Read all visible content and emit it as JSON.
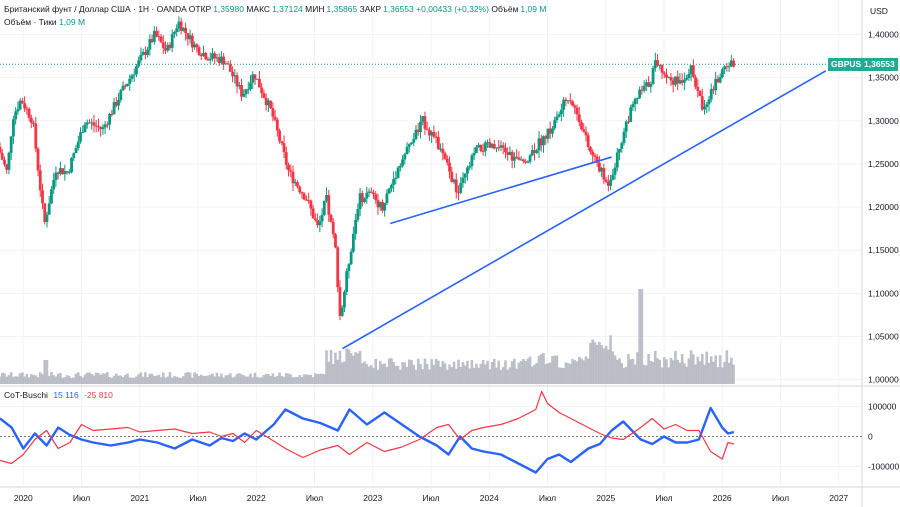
{
  "header": {
    "instrument": "Британский фунт / Доллар США · 1Н · OANDA",
    "open_label": "ОТКР",
    "open": "1,35980",
    "high_label": "МАКС",
    "high": "1,37124",
    "low_label": "МИН",
    "low": "1,35865",
    "close_label": "ЗАКР",
    "close": "1,36553",
    "change": "+0,00433 (+0,32%)",
    "volume_label": "Объём",
    "volume": "1,09 M",
    "volume_row_label": "Объём · Тики",
    "volume_row_value": "1,09 M"
  },
  "currency": "USD",
  "price_tag": {
    "symbol": "GBPUSD",
    "price": "1,36553"
  },
  "cot": {
    "label": "CoT-Buschi",
    "v1": "15 116",
    "v2": "-25 810"
  },
  "colors": {
    "up": "#089981",
    "down": "#f23645",
    "trend": "#2962ff",
    "grid": "#f0f3fa",
    "volume": "#b2b5be",
    "cot_blue": "#2962ff",
    "cot_red": "#f23645"
  },
  "chart_data": [
    {
      "type": "candlestick",
      "title": "",
      "x_ticks": [
        "2020",
        "Июл",
        "2021",
        "Июл",
        "2022",
        "Июл",
        "2023",
        "Июл",
        "2024",
        "Июл",
        "2025",
        "Июл",
        "2026",
        "Июл",
        "2027"
      ],
      "x_tick_values": [
        2020.0,
        2020.5,
        2021.0,
        2021.5,
        2022.0,
        2022.5,
        2023.0,
        2023.5,
        2024.0,
        2024.5,
        2025.0,
        2025.5,
        2026.0,
        2026.5,
        2027.0
      ],
      "xlim": [
        2019.8,
        2027.2
      ],
      "y_ticks": [
        "1,40000",
        "1,35000",
        "1,30000",
        "1,25000",
        "1,20000",
        "1,15000",
        "1,10000",
        "1,05000",
        "1,00000"
      ],
      "y_tick_values": [
        1.4,
        1.35,
        1.3,
        1.25,
        1.2,
        1.15,
        1.1,
        1.05,
        1.0
      ],
      "ylim": [
        0.995,
        1.44
      ],
      "price_path": [
        [
          2019.8,
          1.27
        ],
        [
          2019.88,
          1.24
        ],
        [
          2019.93,
          1.305
        ],
        [
          2020.0,
          1.325
        ],
        [
          2020.1,
          1.3
        ],
        [
          2020.2,
          1.18
        ],
        [
          2020.3,
          1.245
        ],
        [
          2020.4,
          1.24
        ],
        [
          2020.55,
          1.3
        ],
        [
          2020.7,
          1.29
        ],
        [
          2020.85,
          1.33
        ],
        [
          2021.0,
          1.365
        ],
        [
          2021.15,
          1.4
        ],
        [
          2021.25,
          1.38
        ],
        [
          2021.35,
          1.415
        ],
        [
          2021.5,
          1.385
        ],
        [
          2021.6,
          1.375
        ],
        [
          2021.75,
          1.37
        ],
        [
          2021.9,
          1.33
        ],
        [
          2022.0,
          1.355
        ],
        [
          2022.15,
          1.31
        ],
        [
          2022.3,
          1.24
        ],
        [
          2022.45,
          1.21
        ],
        [
          2022.55,
          1.175
        ],
        [
          2022.62,
          1.21
        ],
        [
          2022.7,
          1.15
        ],
        [
          2022.74,
          1.07
        ],
        [
          2022.8,
          1.125
        ],
        [
          2022.9,
          1.21
        ],
        [
          2023.0,
          1.215
        ],
        [
          2023.1,
          1.2
        ],
        [
          2023.25,
          1.25
        ],
        [
          2023.45,
          1.3
        ],
        [
          2023.55,
          1.28
        ],
        [
          2023.65,
          1.25
        ],
        [
          2023.75,
          1.215
        ],
        [
          2023.9,
          1.265
        ],
        [
          2024.0,
          1.27
        ],
        [
          2024.15,
          1.265
        ],
        [
          2024.3,
          1.25
        ],
        [
          2024.45,
          1.275
        ],
        [
          2024.55,
          1.29
        ],
        [
          2024.7,
          1.33
        ],
        [
          2024.8,
          1.3
        ],
        [
          2024.88,
          1.265
        ],
        [
          2024.95,
          1.25
        ],
        [
          2025.03,
          1.225
        ],
        [
          2025.1,
          1.25
        ],
        [
          2025.2,
          1.3
        ],
        [
          2025.3,
          1.33
        ],
        [
          2025.4,
          1.345
        ],
        [
          2025.45,
          1.37
        ],
        [
          2025.55,
          1.35
        ],
        [
          2025.65,
          1.345
        ],
        [
          2025.75,
          1.36
        ],
        [
          2025.85,
          1.315
        ],
        [
          2025.95,
          1.34
        ],
        [
          2026.05,
          1.365
        ],
        [
          2026.1,
          1.366
        ]
      ],
      "trendlines": [
        {
          "from": [
            2023.15,
            1.181
          ],
          "to": [
            2025.05,
            1.258
          ]
        },
        {
          "from": [
            2022.74,
            1.036
          ],
          "to": [
            2026.89,
            1.358
          ]
        }
      ],
      "last_price": 1.36553
    },
    {
      "type": "line",
      "title": "CoT-Buschi",
      "y_ticks": [
        "100000",
        "0",
        "-100000"
      ],
      "y_tick_values": [
        100000,
        0,
        -100000
      ],
      "ylim": [
        -165000,
        165000
      ],
      "series": [
        {
          "name": "",
          "color": "#2962ff",
          "points": [
            [
              2019.8,
              60000
            ],
            [
              2019.9,
              30000
            ],
            [
              2020.0,
              -40000
            ],
            [
              2020.1,
              10000
            ],
            [
              2020.2,
              -30000
            ],
            [
              2020.3,
              30000
            ],
            [
              2020.4,
              5000
            ],
            [
              2020.5,
              -10000
            ],
            [
              2020.6,
              -20000
            ],
            [
              2020.75,
              -30000
            ],
            [
              2020.9,
              -20000
            ],
            [
              2021.0,
              -10000
            ],
            [
              2021.15,
              -20000
            ],
            [
              2021.3,
              -40000
            ],
            [
              2021.45,
              -10000
            ],
            [
              2021.6,
              -30000
            ],
            [
              2021.7,
              -5000
            ],
            [
              2021.8,
              -15000
            ],
            [
              2021.9,
              10000
            ],
            [
              2022.0,
              -10000
            ],
            [
              2022.15,
              40000
            ],
            [
              2022.25,
              90000
            ],
            [
              2022.4,
              60000
            ],
            [
              2022.55,
              45000
            ],
            [
              2022.7,
              20000
            ],
            [
              2022.8,
              90000
            ],
            [
              2022.95,
              40000
            ],
            [
              2023.1,
              80000
            ],
            [
              2023.25,
              40000
            ],
            [
              2023.4,
              0
            ],
            [
              2023.55,
              -30000
            ],
            [
              2023.65,
              -60000
            ],
            [
              2023.75,
              0
            ],
            [
              2023.85,
              -40000
            ],
            [
              2023.95,
              -50000
            ],
            [
              2024.1,
              -60000
            ],
            [
              2024.25,
              -90000
            ],
            [
              2024.4,
              -120000
            ],
            [
              2024.5,
              -75000
            ],
            [
              2024.6,
              -60000
            ],
            [
              2024.7,
              -85000
            ],
            [
              2024.85,
              -40000
            ],
            [
              2024.95,
              -25000
            ],
            [
              2025.05,
              20000
            ],
            [
              2025.15,
              50000
            ],
            [
              2025.3,
              -10000
            ],
            [
              2025.4,
              -25000
            ],
            [
              2025.5,
              0
            ],
            [
              2025.6,
              -20000
            ],
            [
              2025.7,
              -20000
            ],
            [
              2025.8,
              -10000
            ],
            [
              2025.9,
              95000
            ],
            [
              2026.0,
              30000
            ],
            [
              2026.05,
              10000
            ],
            [
              2026.1,
              15000
            ]
          ]
        },
        {
          "name": "",
          "color": "#f23645",
          "points": [
            [
              2019.8,
              -80000
            ],
            [
              2019.9,
              -90000
            ],
            [
              2020.0,
              -60000
            ],
            [
              2020.1,
              -10000
            ],
            [
              2020.2,
              20000
            ],
            [
              2020.3,
              -40000
            ],
            [
              2020.4,
              -20000
            ],
            [
              2020.5,
              40000
            ],
            [
              2020.6,
              20000
            ],
            [
              2020.75,
              25000
            ],
            [
              2020.9,
              30000
            ],
            [
              2021.0,
              15000
            ],
            [
              2021.15,
              20000
            ],
            [
              2021.3,
              25000
            ],
            [
              2021.45,
              10000
            ],
            [
              2021.6,
              15000
            ],
            [
              2021.7,
              0
            ],
            [
              2021.8,
              10000
            ],
            [
              2021.9,
              -20000
            ],
            [
              2022.0,
              20000
            ],
            [
              2022.15,
              -15000
            ],
            [
              2022.25,
              -40000
            ],
            [
              2022.4,
              -70000
            ],
            [
              2022.55,
              -45000
            ],
            [
              2022.7,
              -30000
            ],
            [
              2022.8,
              -60000
            ],
            [
              2022.95,
              -20000
            ],
            [
              2023.1,
              -50000
            ],
            [
              2023.25,
              -35000
            ],
            [
              2023.4,
              -10000
            ],
            [
              2023.55,
              30000
            ],
            [
              2023.65,
              40000
            ],
            [
              2023.75,
              -10000
            ],
            [
              2023.85,
              20000
            ],
            [
              2023.95,
              30000
            ],
            [
              2024.1,
              40000
            ],
            [
              2024.25,
              60000
            ],
            [
              2024.4,
              90000
            ],
            [
              2024.45,
              150000
            ],
            [
              2024.5,
              110000
            ],
            [
              2024.6,
              80000
            ],
            [
              2024.7,
              60000
            ],
            [
              2024.8,
              40000
            ],
            [
              2024.95,
              10000
            ],
            [
              2025.05,
              -5000
            ],
            [
              2025.15,
              -10000
            ],
            [
              2025.3,
              30000
            ],
            [
              2025.4,
              60000
            ],
            [
              2025.5,
              25000
            ],
            [
              2025.6,
              40000
            ],
            [
              2025.7,
              20000
            ],
            [
              2025.8,
              20000
            ],
            [
              2025.9,
              -50000
            ],
            [
              2026.0,
              -75000
            ],
            [
              2026.05,
              -20000
            ],
            [
              2026.1,
              -25000
            ]
          ]
        }
      ]
    }
  ]
}
